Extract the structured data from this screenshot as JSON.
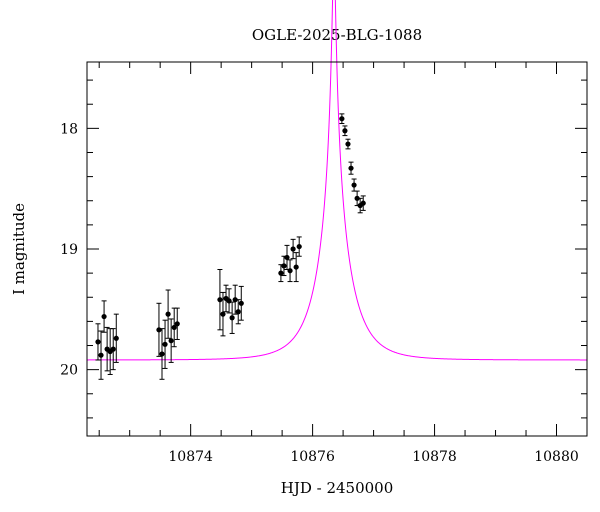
{
  "chart_data": {
    "type": "scatter",
    "title": "OGLE-2025-BLG-1088",
    "xlabel": "HJD - 2450000",
    "ylabel": "I magnitude",
    "xlim": [
      10872.3,
      10880.5
    ],
    "ylim": [
      20.55,
      17.45
    ],
    "y_inverted": true,
    "x_major_ticks": [
      10874,
      10876,
      10878,
      10880
    ],
    "y_major_ticks": [
      18,
      19,
      20
    ],
    "grid": false,
    "colors": {
      "points": "#000000",
      "model": "#ff00ff",
      "axes": "#000000"
    },
    "series": [
      {
        "kind": "points",
        "x": [
          10872.48,
          10872.53,
          10872.58,
          10872.63,
          10872.68,
          10872.73,
          10872.78,
          10873.48,
          10873.53,
          10873.58,
          10873.63,
          10873.68,
          10873.73,
          10873.78,
          10874.48,
          10874.53,
          10874.58,
          10874.63,
          10874.68,
          10874.73,
          10874.78,
          10874.83,
          10875.48,
          10875.53,
          10875.58,
          10875.63,
          10875.68,
          10875.73,
          10875.78,
          10876.48,
          10876.53,
          10876.58,
          10876.63,
          10876.68,
          10876.73,
          10876.78,
          10876.83
        ],
        "y": [
          19.77,
          19.88,
          19.56,
          19.83,
          19.85,
          19.83,
          19.74,
          19.67,
          19.87,
          19.79,
          19.54,
          19.76,
          19.65,
          19.62,
          19.42,
          19.54,
          19.41,
          19.43,
          19.57,
          19.42,
          19.52,
          19.45,
          19.2,
          19.14,
          19.07,
          19.18,
          19.0,
          19.15,
          18.98,
          17.92,
          18.02,
          18.13,
          18.33,
          18.47,
          18.58,
          18.64,
          18.62
        ],
        "yerr": [
          0.15,
          0.2,
          0.13,
          0.18,
          0.19,
          0.17,
          0.2,
          0.22,
          0.21,
          0.2,
          0.2,
          0.18,
          0.16,
          0.13,
          0.25,
          0.18,
          0.11,
          0.1,
          0.13,
          0.12,
          0.1,
          0.14,
          0.07,
          0.08,
          0.1,
          0.09,
          0.08,
          0.12,
          0.08,
          0.04,
          0.04,
          0.04,
          0.05,
          0.05,
          0.06,
          0.06,
          0.06
        ]
      },
      {
        "kind": "line",
        "model": {
          "t0": 10876.35,
          "tE": 0.5,
          "u0": 0.045,
          "I_base": 19.92
        }
      }
    ]
  }
}
